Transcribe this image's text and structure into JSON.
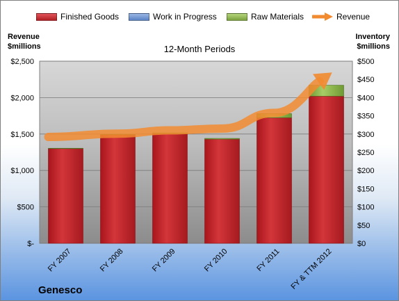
{
  "chart_data": {
    "type": "bar",
    "subtitle": "12-Month Periods",
    "company": "Genesco",
    "left_axis_title": [
      "Revenue",
      "$millions"
    ],
    "right_axis_title": [
      "Inventory",
      "$millions"
    ],
    "categories": [
      "FY 2007",
      "FY 2008",
      "FY 2009",
      "FY 2010",
      "FY 2011",
      "FY & TTM 2012"
    ],
    "left_ticks": [
      "$-",
      "$500",
      "$1,000",
      "$1,500",
      "$2,000",
      "$2,500"
    ],
    "right_ticks": [
      "$0",
      "$50",
      "$100",
      "$150",
      "$200",
      "$250",
      "$300",
      "$350",
      "$400",
      "$450",
      "$500"
    ],
    "ylim_left": [
      0,
      2500
    ],
    "ylim_right": [
      0,
      500
    ],
    "series": [
      {
        "name": "Finished Goods",
        "axis": "right",
        "values": [
          260,
          298,
          301,
          286,
          345,
          404
        ]
      },
      {
        "name": "Work in Progress",
        "axis": "right",
        "values": [
          0,
          0,
          0,
          0,
          0,
          0
        ]
      },
      {
        "name": "Raw Materials",
        "axis": "right",
        "values": [
          1,
          1,
          2,
          2,
          11,
          30
        ]
      },
      {
        "name": "Revenue",
        "axis": "left",
        "values": [
          1460,
          1505,
          1550,
          1575,
          1790,
          2290
        ]
      }
    ],
    "colors": {
      "finished_goods": "#c0282d",
      "work_in_progress": "#6d94d1",
      "raw_materials": "#8fb84f",
      "revenue": "#f28b30"
    },
    "grid": true,
    "legend_position": "top"
  }
}
